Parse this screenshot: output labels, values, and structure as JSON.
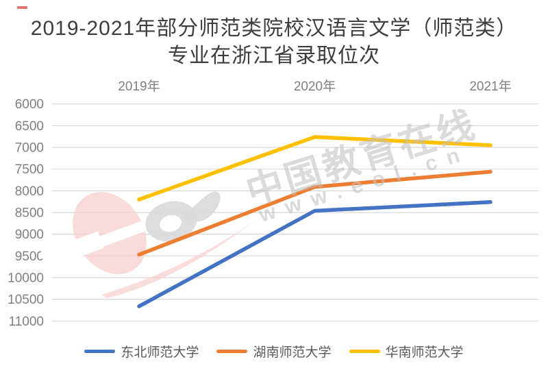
{
  "page": {
    "title_line1": "2019-2021年部分师范类院校汉语言文学（师范类）",
    "title_line2": "专业在浙江省录取位次"
  },
  "watermark": {
    "brand_text": "中国教育在线",
    "url_text": "www.eol.cn"
  },
  "chart_data": {
    "type": "line",
    "title": "2019-2021年部分师范类院校汉语言文学（师范类）专业在浙江省录取位次",
    "categories": [
      "2019年",
      "2020年",
      "2021年"
    ],
    "series": [
      {
        "name": "东北师范大学",
        "color": "#4472C4",
        "values": [
          10660,
          8460,
          8260
        ]
      },
      {
        "name": "湖南师范大学",
        "color": "#ED7D31",
        "values": [
          9470,
          7910,
          7560
        ]
      },
      {
        "name": "华南师范大学",
        "color": "#FFC000",
        "values": [
          8200,
          6760,
          6950
        ]
      }
    ],
    "y_axis": {
      "ticks": [
        6000,
        6500,
        7000,
        7500,
        8000,
        8500,
        9000,
        9500,
        10000,
        10500,
        11000
      ],
      "min": 6000,
      "max": 11000,
      "tick_step": 500,
      "direction": "values-increase-downward",
      "unit": "位次"
    },
    "x_axis": {
      "position": "top"
    },
    "grid": true,
    "legend_position": "bottom",
    "colors": {
      "gridline": "#D8D8D8",
      "axis_label": "#7F7F7F",
      "title": "#3d3d3d",
      "legend_label": "#595959"
    }
  }
}
